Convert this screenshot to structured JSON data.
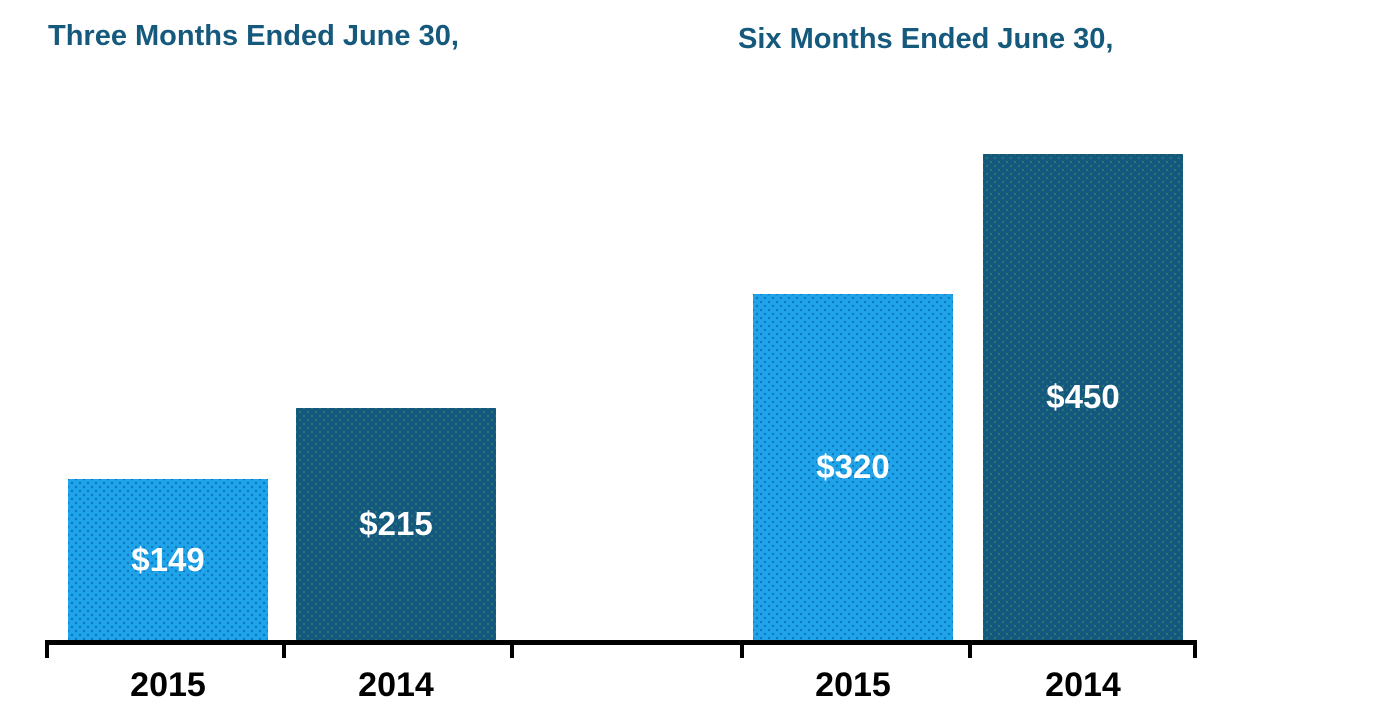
{
  "chart_data": {
    "type": "bar",
    "groups": [
      {
        "title": "Three Months Ended June 30,",
        "categories": [
          "2015",
          "2014"
        ],
        "values": [
          149,
          215
        ],
        "value_labels": [
          "$149",
          "$215"
        ]
      },
      {
        "title": "Six Months Ended June 30,",
        "categories": [
          "2015",
          "2014"
        ],
        "values": [
          320,
          450
        ],
        "value_labels": [
          "$320",
          "$450"
        ]
      }
    ],
    "value_prefix": "$",
    "ylim": [
      0,
      455
    ],
    "grid": false,
    "legend": false,
    "xlabel": "",
    "ylabel": "",
    "bar_colors": {
      "2015": "#1FA4E9",
      "2014": "#14587F"
    }
  },
  "colors": {
    "title_text": "#155A7D",
    "bar_2015": "#1FA4E9",
    "bar_2014": "#14587F",
    "value_label_text": "#FFFFFF",
    "axis": "#000000",
    "tick_label_text": "#000000",
    "background": "#FFFFFF"
  }
}
